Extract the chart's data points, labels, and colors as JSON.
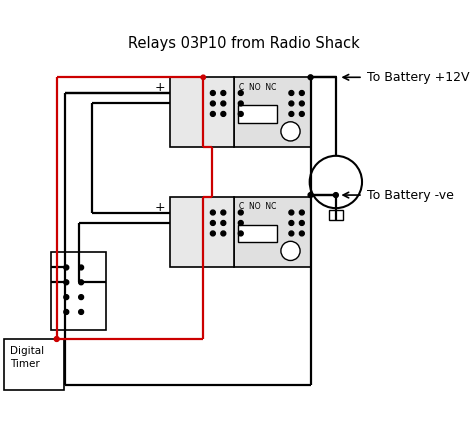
{
  "title": "Relays 03P10 from Radio Shack",
  "label_battery_pos": "To Battery +12V",
  "label_battery_neg": "To Battery -ve",
  "label_timer": "Digital\nTimer",
  "label_c_no_nc": "C  NO  NC",
  "bg_color": "#ffffff",
  "black": "#000000",
  "red": "#cc0000",
  "title_fontsize": 10.5,
  "label_fontsize": 9.0
}
